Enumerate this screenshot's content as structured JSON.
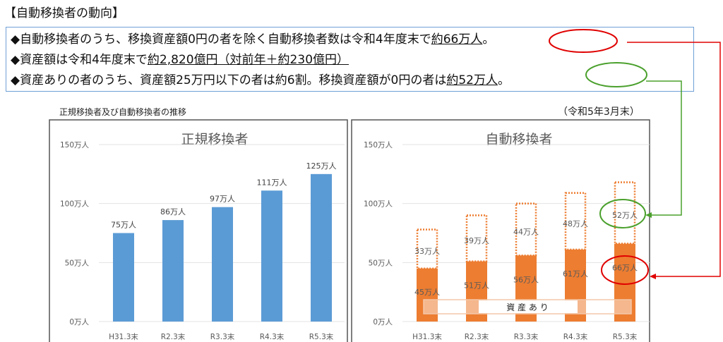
{
  "heading": "【自動移換者の動向】",
  "summary": [
    {
      "pre": "◆自動移換者のうち、移換資産額0円の者を除く自動移換者数は令和4年度末で",
      "u": "約66万人",
      "post": "。"
    },
    {
      "pre": "◆資産額は令和4年度末で",
      "u": "約2,820億円（対前年＋約230億円）",
      "post": ""
    },
    {
      "pre": "◆資産ありの者のうち、資産額25万円以下の者は約6割。移換資産額が0円の者は",
      "u": "約52万人",
      "post": "。"
    }
  ],
  "subtitle_left": "正規移換者及び自動移換者の推移",
  "subtitle_right": "（令和5年3月末）",
  "colors": {
    "regular": "#5b9bd5",
    "auto": "#ed7d31",
    "red": "#e00000",
    "green": "#4aa02c"
  },
  "chart_data": [
    {
      "type": "bar",
      "title": "正規移換者",
      "categories": [
        "H31.3末",
        "R2.3末",
        "R3.3末",
        "R4.3末",
        "R5.3末"
      ],
      "yticks": [
        "0万人",
        "50万人",
        "100万人",
        "150万人"
      ],
      "ylim": [
        0,
        150
      ],
      "grid": true,
      "values": [
        75,
        86,
        97,
        111,
        125
      ],
      "data_labels": [
        "75万人",
        "86万人",
        "97万人",
        "111万人",
        "125万人"
      ]
    },
    {
      "type": "bar",
      "stacked": true,
      "title": "自動移換者",
      "categories": [
        "H31.3末",
        "R2.3末",
        "R3.3末",
        "R4.3末",
        "R5.3末"
      ],
      "yticks": [
        "0万人",
        "50万人",
        "100万人",
        "150万人"
      ],
      "ylim": [
        0,
        150
      ],
      "grid": true,
      "annotation": "資 産 あ り",
      "series": [
        {
          "name": "資産あり",
          "values": [
            45,
            51,
            56,
            61,
            66
          ],
          "data_labels": [
            "45万人",
            "51万人",
            "56万人",
            "61万人",
            "66万人"
          ]
        },
        {
          "values": [
            33,
            39,
            44,
            48,
            52
          ],
          "data_labels": [
            "33万人",
            "39万人",
            "44万人",
            "48万人",
            "52万人"
          ]
        }
      ]
    }
  ]
}
